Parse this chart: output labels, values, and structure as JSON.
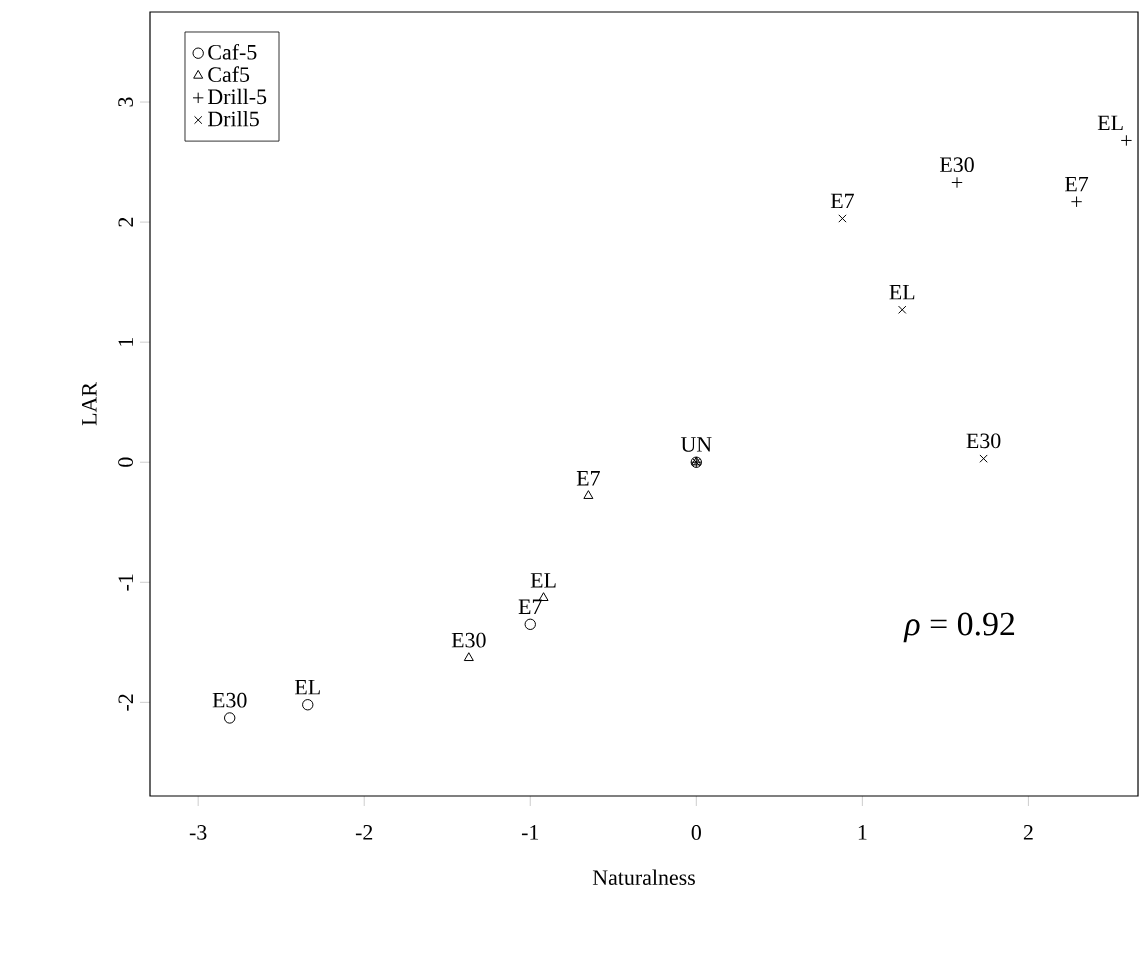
{
  "chart_data": {
    "type": "scatter",
    "xlabel": "Naturalness",
    "ylabel": "LAR",
    "xlim": [
      -3.29,
      2.66
    ],
    "ylim": [
      -2.78,
      3.75
    ],
    "xticks": [
      -3,
      -2,
      -1,
      0,
      1,
      2
    ],
    "yticks": [
      -2,
      -1,
      0,
      1,
      2,
      3
    ],
    "legend": "top left",
    "grid": false,
    "series": [
      {
        "name": "Caf-5",
        "color": "#000000",
        "marker": "circle",
        "x": [
          -2.81,
          -2.34,
          -1.0,
          0
        ],
        "values": [
          -2.13,
          -2.02,
          -1.35,
          0
        ]
      },
      {
        "name": "Caf5",
        "color": "#000000",
        "marker": "triangle",
        "x": [
          -1.37,
          -0.92,
          -0.65,
          0
        ],
        "values": [
          -1.63,
          -1.13,
          -0.28,
          0
        ]
      },
      {
        "name": "Drill-5",
        "color": "#000000",
        "marker": "plus",
        "x": [
          1.57,
          2.29,
          2.59,
          0
        ],
        "values": [
          2.33,
          2.17,
          2.68,
          0
        ]
      },
      {
        "name": "Drill5",
        "color": "#000000",
        "marker": "cross",
        "x": [
          0.88,
          1.24,
          1.73,
          0
        ],
        "values": [
          2.03,
          1.27,
          0.03,
          0
        ]
      }
    ],
    "annotations": [
      {
        "text": "E30",
        "x": -2.81,
        "y": -2.13
      },
      {
        "text": "EL",
        "x": -2.34,
        "y": -2.02
      },
      {
        "text": "E7",
        "x": -1.0,
        "y": -1.35
      },
      {
        "text": "E30",
        "x": -1.37,
        "y": -1.63
      },
      {
        "text": "EL",
        "x": -0.92,
        "y": -1.13
      },
      {
        "text": "E7",
        "x": -0.65,
        "y": -0.28
      },
      {
        "text": "UN",
        "x": 0,
        "y": 0
      },
      {
        "text": "E7",
        "x": 0.88,
        "y": 2.03
      },
      {
        "text": "EL",
        "x": 1.24,
        "y": 1.27
      },
      {
        "text": "E30",
        "x": 1.73,
        "y": 0.03
      },
      {
        "text": "E30",
        "x": 1.57,
        "y": 2.33
      },
      {
        "text": "E7",
        "x": 2.29,
        "y": 2.17
      },
      {
        "text": "EL",
        "x": 2.59,
        "y": 2.68
      },
      "*ρ* = 0.92"
    ]
  }
}
